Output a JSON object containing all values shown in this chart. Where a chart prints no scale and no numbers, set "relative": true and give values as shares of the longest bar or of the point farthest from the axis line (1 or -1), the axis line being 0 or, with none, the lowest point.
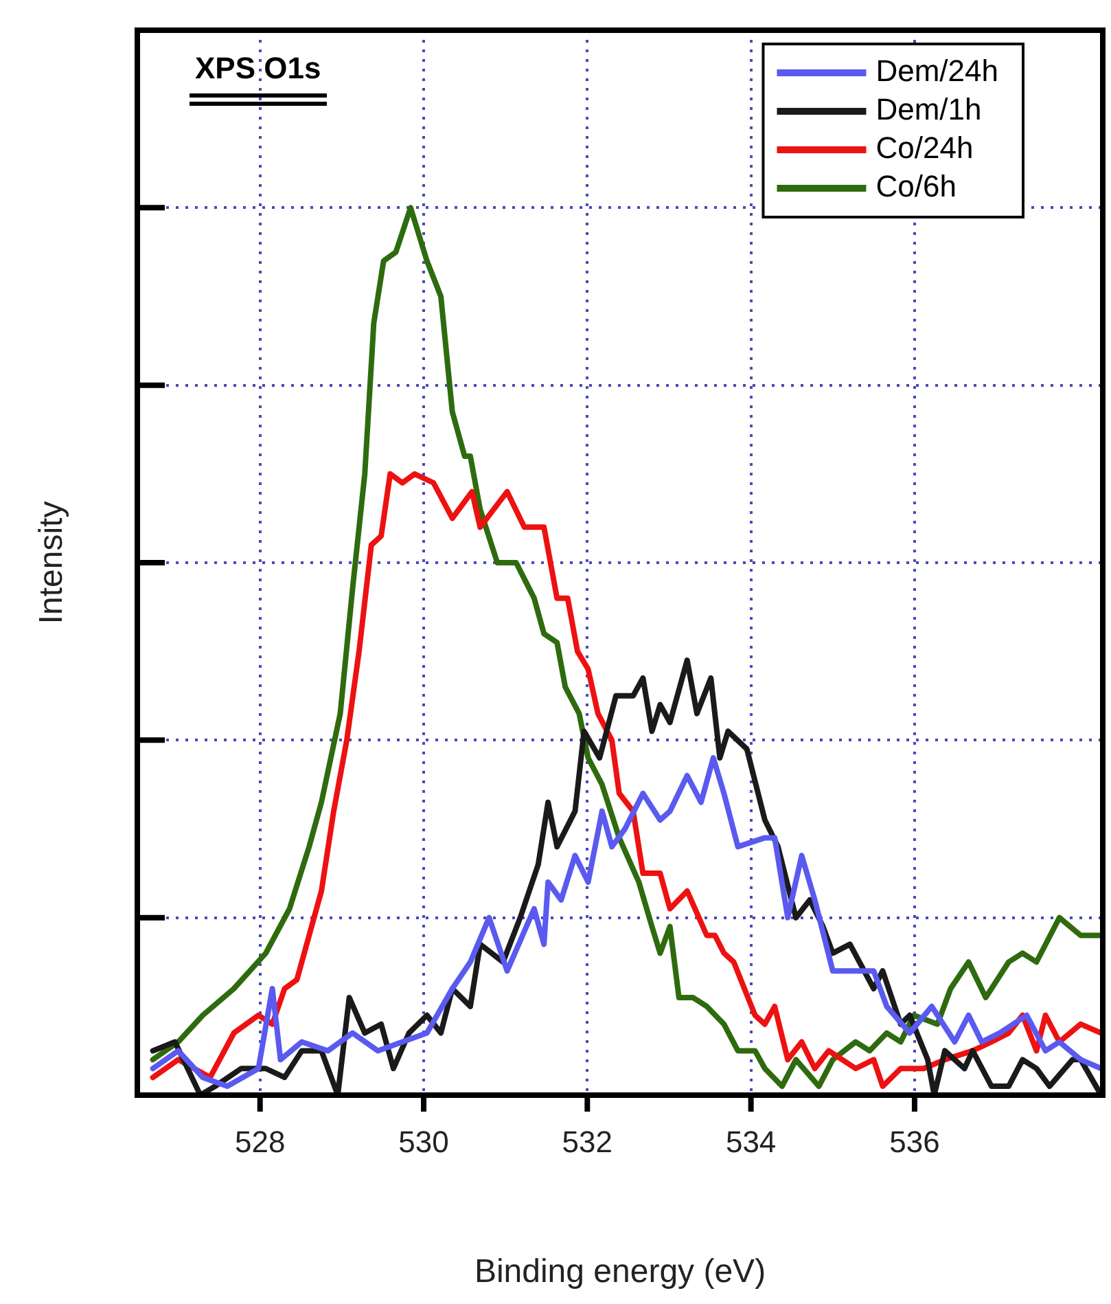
{
  "chart_data": {
    "type": "line",
    "xlabel": "Binding energy (eV)",
    "ylabel": "Intensity",
    "relative": true,
    "xlim": [
      526.5,
      538.3
    ],
    "xticks": [
      528,
      530,
      532,
      534,
      536
    ],
    "grid": true,
    "legend": "top right",
    "tick_labels": "x",
    "annotations": [
      "XPS O1s"
    ],
    "series": [
      {
        "name": "Dem/24h",
        "color": "#5a5af0",
        "x": [
          526.69,
          527.0,
          527.3,
          527.6,
          527.98,
          528.15,
          528.25,
          528.51,
          528.83,
          529.13,
          529.44,
          529.74,
          530.04,
          530.35,
          530.57,
          530.8,
          531.02,
          531.35,
          531.47,
          531.52,
          531.68,
          531.85,
          532.01,
          532.18,
          532.3,
          532.46,
          532.68,
          532.89,
          533.01,
          533.22,
          533.39,
          533.54,
          533.67,
          533.84,
          534.17,
          534.29,
          534.45,
          534.62,
          534.78,
          535.0,
          535.21,
          535.5,
          535.66,
          535.94,
          536.21,
          536.49,
          536.66,
          536.82,
          537.04,
          537.37,
          537.6,
          537.77,
          538.03,
          538.28
        ],
        "values": [
          0.03,
          0.05,
          0.02,
          0.01,
          0.03,
          0.12,
          0.04,
          0.06,
          0.05,
          0.07,
          0.05,
          0.06,
          0.07,
          0.12,
          0.15,
          0.2,
          0.14,
          0.21,
          0.17,
          0.24,
          0.22,
          0.27,
          0.24,
          0.32,
          0.28,
          0.3,
          0.34,
          0.31,
          0.32,
          0.36,
          0.33,
          0.38,
          0.34,
          0.28,
          0.29,
          0.29,
          0.2,
          0.27,
          0.22,
          0.14,
          0.14,
          0.14,
          0.1,
          0.07,
          0.1,
          0.06,
          0.09,
          0.06,
          0.07,
          0.09,
          0.05,
          0.06,
          0.04,
          0.03
        ]
      },
      {
        "name": "Dem/1h",
        "color": "#1a1a1a",
        "x": [
          526.69,
          526.96,
          527.27,
          527.45,
          527.77,
          528.07,
          528.3,
          528.51,
          528.75,
          528.95,
          529.09,
          529.28,
          529.48,
          529.63,
          529.82,
          530.04,
          530.21,
          530.35,
          530.57,
          530.69,
          530.97,
          531.18,
          531.4,
          531.52,
          531.63,
          531.85,
          531.96,
          532.15,
          532.35,
          532.56,
          532.68,
          532.79,
          532.89,
          533.01,
          533.22,
          533.34,
          533.51,
          533.62,
          533.72,
          533.95,
          534.17,
          534.33,
          534.55,
          534.72,
          534.88,
          535.0,
          535.21,
          535.5,
          535.61,
          535.83,
          535.94,
          536.16,
          536.24,
          536.37,
          536.61,
          536.71,
          536.94,
          537.15,
          537.32,
          537.49,
          537.65,
          537.93,
          538.03,
          538.28
        ],
        "values": [
          0.05,
          0.06,
          0,
          0.01,
          0.03,
          0.03,
          0.02,
          0.05,
          0.05,
          0,
          0.11,
          0.07,
          0.08,
          0.03,
          0.07,
          0.09,
          0.07,
          0.12,
          0.1,
          0.17,
          0.15,
          0.2,
          0.26,
          0.33,
          0.28,
          0.32,
          0.41,
          0.38,
          0.45,
          0.45,
          0.47,
          0.41,
          0.44,
          0.42,
          0.49,
          0.43,
          0.47,
          0.38,
          0.41,
          0.39,
          0.31,
          0.28,
          0.2,
          0.22,
          0.19,
          0.16,
          0.17,
          0.12,
          0.14,
          0.08,
          0.09,
          0.04,
          0,
          0.05,
          0.03,
          0.05,
          0.01,
          0.01,
          0.04,
          0.03,
          0.01,
          0.04,
          0.04,
          0
        ]
      },
      {
        "name": "Co/24h",
        "color": "#ee1111",
        "x": [
          526.69,
          527.0,
          527.39,
          527.68,
          527.98,
          528.15,
          528.3,
          528.45,
          528.6,
          528.75,
          528.9,
          529.06,
          529.21,
          529.36,
          529.48,
          529.59,
          529.74,
          529.89,
          530.12,
          530.35,
          530.59,
          530.69,
          531.02,
          531.23,
          531.47,
          531.63,
          531.76,
          531.88,
          532.01,
          532.13,
          532.3,
          532.39,
          532.56,
          532.68,
          532.89,
          533.01,
          533.22,
          533.46,
          533.56,
          533.67,
          533.79,
          534.05,
          534.17,
          534.29,
          534.45,
          534.62,
          534.78,
          534.95,
          535.28,
          535.5,
          535.61,
          535.83,
          536.11,
          536.37,
          536.71,
          536.94,
          537.15,
          537.32,
          537.49,
          537.6,
          537.77,
          538.03,
          538.28
        ],
        "values": [
          0.02,
          0.04,
          0.02,
          0.07,
          0.09,
          0.08,
          0.12,
          0.13,
          0.18,
          0.23,
          0.32,
          0.4,
          0.5,
          0.62,
          0.63,
          0.7,
          0.69,
          0.7,
          0.69,
          0.65,
          0.68,
          0.64,
          0.68,
          0.64,
          0.64,
          0.56,
          0.56,
          0.5,
          0.48,
          0.43,
          0.4,
          0.34,
          0.32,
          0.25,
          0.25,
          0.21,
          0.23,
          0.18,
          0.18,
          0.16,
          0.15,
          0.09,
          0.08,
          0.1,
          0.04,
          0.06,
          0.03,
          0.05,
          0.03,
          0.04,
          0.01,
          0.03,
          0.03,
          0.04,
          0.05,
          0.06,
          0.07,
          0.09,
          0.05,
          0.09,
          0.06,
          0.08,
          0.07
        ]
      },
      {
        "name": "Co/6h",
        "color": "#2e6b0e",
        "x": [
          526.69,
          527.0,
          527.3,
          527.68,
          528.07,
          528.36,
          528.6,
          528.75,
          528.98,
          529.13,
          529.28,
          529.39,
          529.51,
          529.66,
          529.84,
          530.04,
          530.21,
          530.35,
          530.5,
          530.57,
          530.69,
          530.9,
          531.13,
          531.35,
          531.47,
          531.63,
          531.73,
          531.9,
          532.01,
          532.18,
          532.39,
          532.63,
          532.79,
          532.89,
          533.01,
          533.12,
          533.29,
          533.46,
          533.67,
          533.84,
          534.05,
          534.17,
          534.38,
          534.55,
          534.83,
          535.0,
          535.28,
          535.45,
          535.66,
          535.83,
          535.99,
          536.28,
          536.44,
          536.66,
          536.87,
          537.15,
          537.32,
          537.49,
          537.77,
          538.03,
          538.28
        ],
        "values": [
          0.04,
          0.06,
          0.09,
          0.12,
          0.16,
          0.21,
          0.28,
          0.33,
          0.43,
          0.57,
          0.7,
          0.87,
          0.94,
          0.95,
          1,
          0.94,
          0.9,
          0.77,
          0.72,
          0.72,
          0.66,
          0.6,
          0.6,
          0.56,
          0.52,
          0.51,
          0.46,
          0.43,
          0.38,
          0.35,
          0.29,
          0.24,
          0.19,
          0.16,
          0.19,
          0.11,
          0.11,
          0.1,
          0.08,
          0.05,
          0.05,
          0.03,
          0.01,
          0.04,
          0.01,
          0.04,
          0.06,
          0.05,
          0.07,
          0.06,
          0.09,
          0.08,
          0.12,
          0.15,
          0.11,
          0.15,
          0.16,
          0.15,
          0.2,
          0.18,
          0.18
        ]
      }
    ]
  }
}
